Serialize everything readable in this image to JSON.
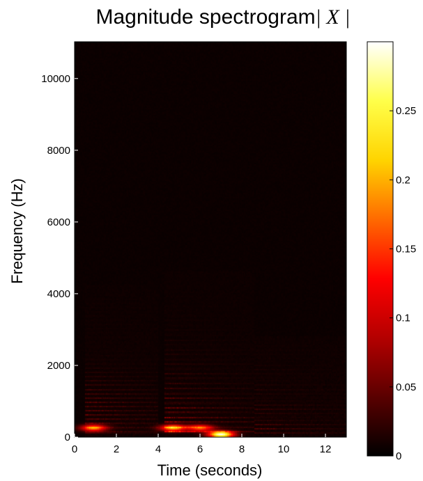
{
  "chart_data": {
    "type": "heatmap",
    "title": "Magnitude spectrogram",
    "title_symbol": "| X |",
    "xlabel": "Time (seconds)",
    "ylabel": "Frequency  (Hz)",
    "xlim": [
      0,
      13
    ],
    "ylim": [
      0,
      11025
    ],
    "xticks": [
      0,
      2,
      4,
      6,
      8,
      10,
      12
    ],
    "xtick_labels": [
      "0",
      "2",
      "4",
      "6",
      "8",
      "10",
      "12"
    ],
    "yticks": [
      0,
      2000,
      4000,
      6000,
      8000,
      10000
    ],
    "ytick_labels": [
      "0",
      "2000",
      "4000",
      "6000",
      "8000",
      "10000"
    ],
    "colorbar": {
      "range": [
        0,
        0.3
      ],
      "ticks": [
        0,
        0.05,
        0.1,
        0.15,
        0.2,
        0.25
      ],
      "tick_labels": [
        "0",
        "0.05",
        "0.1",
        "0.15",
        "0.2",
        "0.25"
      ],
      "colormap": "hot",
      "colormap_stops": [
        "#000000",
        "#5a0000",
        "#b40000",
        "#ff0000",
        "#ff6a00",
        "#ffd400",
        "#ffff4a",
        "#ffffff"
      ]
    },
    "grid": false,
    "notes_segments": [
      {
        "t_start": 0.5,
        "t_end": 4.0,
        "fundamental_hz": 120,
        "max_harmonic_hz": 4200,
        "peak": 0.14
      },
      {
        "t_start": 4.3,
        "t_end": 8.6,
        "fundamental_hz": 135,
        "max_harmonic_hz": 4600,
        "peak": 0.17
      },
      {
        "t_start": 8.6,
        "t_end": 13.0,
        "fundamental_hz": 110,
        "max_harmonic_hz": 2800,
        "peak": 0.06
      }
    ],
    "hot_spots": [
      {
        "t": 7.0,
        "f": 60,
        "value": 0.29
      },
      {
        "t": 4.7,
        "f": 240,
        "value": 0.2
      },
      {
        "t": 0.9,
        "f": 240,
        "value": 0.18
      },
      {
        "t": 6.0,
        "f": 240,
        "value": 0.16
      }
    ]
  }
}
